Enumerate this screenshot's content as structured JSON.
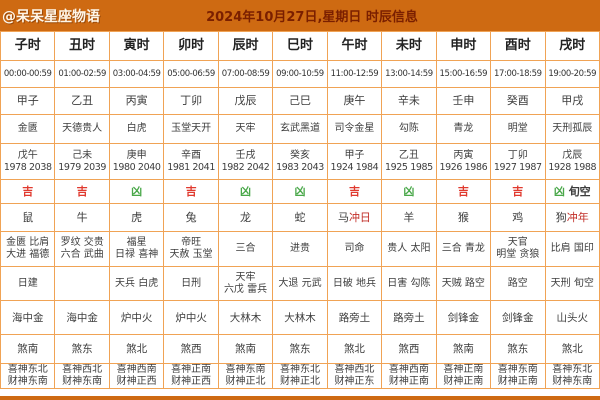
{
  "header": {
    "watermark": "@呆呆星座物语",
    "title": "2024年10月27日,星期日 时辰信息"
  },
  "colors": {
    "header_bg": "#ce6a12",
    "title_text": "#7a1f00",
    "grid_border": "#f0a355",
    "lucky_red": "#e0392e",
    "unlucky_green": "#4aa84a",
    "clash_red": "#c2302a"
  },
  "table": {
    "columns": [
      {
        "hour": "子时",
        "time": "00:00-00:59",
        "ganzhi": "甲子",
        "star": "金匮",
        "ming_gz": "戊午",
        "ming_years": "1978 2038",
        "luck": "吉",
        "zodiac": "鼠",
        "jishen": [
          "金匮 比肩",
          "大进 福德"
        ],
        "xiongshen": [
          "日建"
        ],
        "nayin": "海中金",
        "sha": "煞南",
        "xicai": [
          "喜神东北",
          "财神东南"
        ]
      },
      {
        "hour": "丑时",
        "time": "01:00-02:59",
        "ganzhi": "乙丑",
        "star": "天德贵人",
        "ming_gz": "己未",
        "ming_years": "1979 2039",
        "luck": "吉",
        "zodiac": "牛",
        "jishen": [
          "罗纹 交贵",
          "六合 武曲"
        ],
        "xiongshen": [],
        "nayin": "海中金",
        "sha": "煞东",
        "xicai": [
          "喜神西北",
          "财神东南"
        ]
      },
      {
        "hour": "寅时",
        "time": "03:00-04:59",
        "ganzhi": "丙寅",
        "star": "白虎",
        "ming_gz": "庚申",
        "ming_years": "1980 2040",
        "luck": "凶",
        "zodiac": "虎",
        "jishen": [
          "福星",
          "日禄 喜神"
        ],
        "xiongshen": [
          "天兵 白虎"
        ],
        "nayin": "炉中火",
        "sha": "煞北",
        "xicai": [
          "喜神西南",
          "财神正西"
        ]
      },
      {
        "hour": "卯时",
        "time": "05:00-06:59",
        "ganzhi": "丁卯",
        "star": "玉堂天开",
        "ming_gz": "辛酉",
        "ming_years": "1981 2041",
        "luck": "吉",
        "zodiac": "兔",
        "jishen": [
          "帝旺",
          "天赦 玉堂"
        ],
        "xiongshen": [
          "日刑"
        ],
        "nayin": "炉中火",
        "sha": "煞西",
        "xicai": [
          "喜神正南",
          "财神正西"
        ]
      },
      {
        "hour": "辰时",
        "time": "07:00-08:59",
        "ganzhi": "戊辰",
        "star": "天牢",
        "ming_gz": "壬戌",
        "ming_years": "1982 2042",
        "luck": "凶",
        "zodiac": "龙",
        "jishen": [
          "三合"
        ],
        "xiongshen": [
          "天牢",
          "六戊 雷兵"
        ],
        "nayin": "大林木",
        "sha": "煞南",
        "xicai": [
          "喜神东南",
          "财神正北"
        ]
      },
      {
        "hour": "巳时",
        "time": "09:00-10:59",
        "ganzhi": "己巳",
        "star": "玄武黑道",
        "ming_gz": "癸亥",
        "ming_years": "1983 2043",
        "luck": "凶",
        "zodiac": "蛇",
        "jishen": [
          "进贵"
        ],
        "xiongshen": [
          "大退 元武"
        ],
        "nayin": "大林木",
        "sha": "煞东",
        "xicai": [
          "喜神东北",
          "财神正北"
        ]
      },
      {
        "hour": "午时",
        "time": "11:00-12:59",
        "ganzhi": "庚午",
        "star": "司令金星",
        "ming_gz": "甲子",
        "ming_years": "1924 1984",
        "luck": "吉",
        "zodiac": "马",
        "zodiac_note": "冲日",
        "jishen": [
          "司命"
        ],
        "xiongshen": [
          "日破 地兵"
        ],
        "nayin": "路旁土",
        "sha": "煞北",
        "xicai": [
          "喜神西北",
          "财神正东"
        ]
      },
      {
        "hour": "未时",
        "time": "13:00-14:59",
        "ganzhi": "辛未",
        "star": "勾陈",
        "ming_gz": "乙丑",
        "ming_years": "1925 1985",
        "luck": "凶",
        "zodiac": "羊",
        "jishen": [
          "贵人 太阳"
        ],
        "xiongshen": [
          "日害 勾陈"
        ],
        "nayin": "路旁土",
        "sha": "煞西",
        "xicai": [
          "喜神西南",
          "财神正南"
        ]
      },
      {
        "hour": "申时",
        "time": "15:00-16:59",
        "ganzhi": "壬申",
        "star": "青龙",
        "ming_gz": "丙寅",
        "ming_years": "1926 1986",
        "luck": "吉",
        "zodiac": "猴",
        "jishen": [
          "三合 青龙"
        ],
        "xiongshen": [
          "天贼 路空"
        ],
        "nayin": "剑锋金",
        "sha": "煞南",
        "xicai": [
          "喜神正南",
          "财神正南"
        ]
      },
      {
        "hour": "酉时",
        "time": "17:00-18:59",
        "ganzhi": "癸酉",
        "star": "明堂",
        "ming_gz": "丁卯",
        "ming_years": "1927 1987",
        "luck": "吉",
        "zodiac": "鸡",
        "jishen": [
          "天官",
          "明堂 贪狼"
        ],
        "xiongshen": [
          "路空"
        ],
        "nayin": "剑锋金",
        "sha": "煞东",
        "xicai": [
          "喜神东南",
          "财神正南"
        ]
      },
      {
        "hour": "戌时",
        "time": "19:00-20:59",
        "ganzhi": "甲戌",
        "star": "天刑孤辰",
        "ming_gz": "戊辰",
        "ming_years": "1928 1988",
        "luck": "凶",
        "luck_note": "旬空",
        "zodiac": "狗",
        "zodiac_note": "冲年",
        "jishen": [
          "比肩 国印"
        ],
        "xiongshen": [
          "天刑 旬空"
        ],
        "nayin": "山头火",
        "sha": "煞北",
        "xicai": [
          "喜神东北",
          "财神东南"
        ]
      }
    ]
  }
}
